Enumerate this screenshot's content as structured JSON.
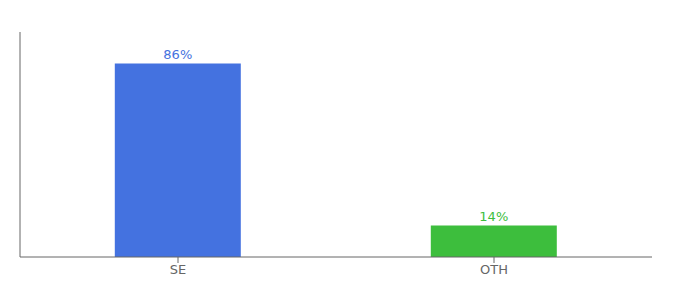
{
  "chart_data": {
    "type": "bar",
    "categories": [
      "SE",
      "OTH"
    ],
    "values": [
      86,
      14
    ],
    "value_labels": [
      "86%",
      "14%"
    ],
    "colors": [
      "#4472e0",
      "#3dbe3d"
    ],
    "ylim": [
      0,
      100
    ],
    "data_labels": true,
    "tick_labels": "x",
    "grid": false
  }
}
